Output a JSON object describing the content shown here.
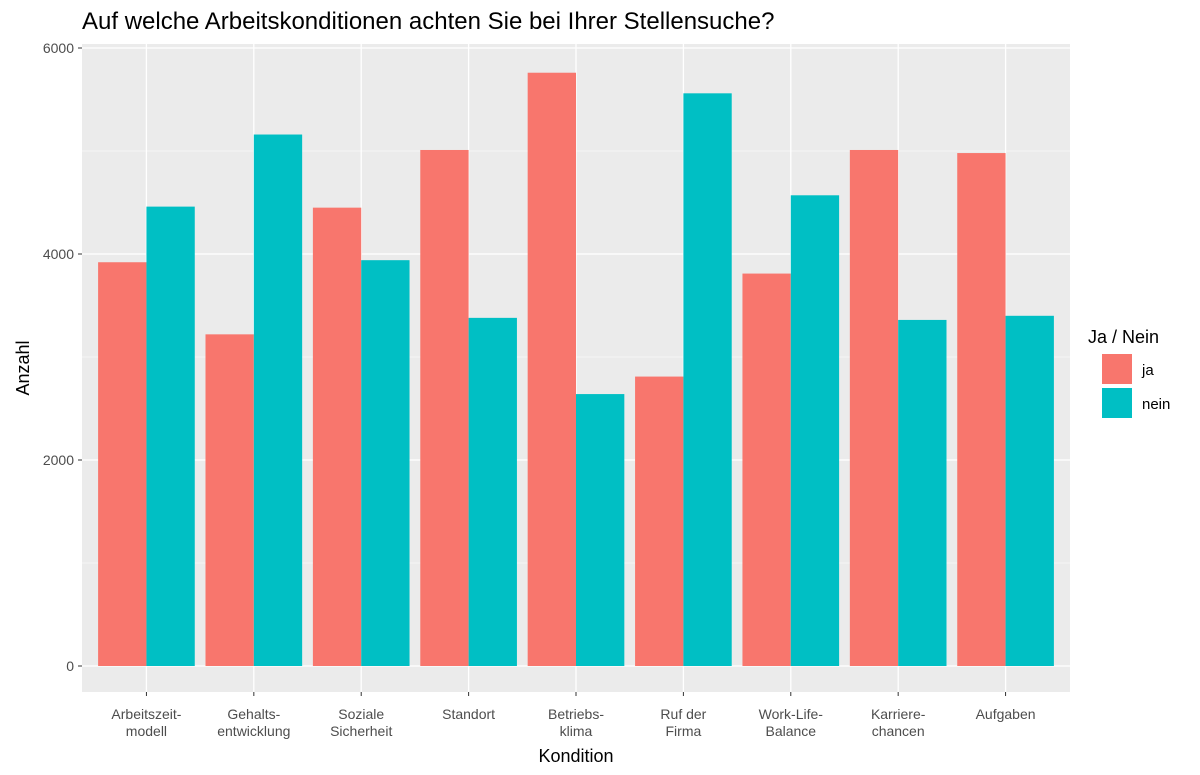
{
  "chart_data": {
    "type": "bar",
    "title": "Auf welche Arbeitskonditionen achten Sie bei Ihrer Stellensuche?",
    "xlabel": "Kondition",
    "ylabel": "Anzahl",
    "ylim": [
      -300,
      6000
    ],
    "yticks": [
      0,
      2000,
      4000,
      6000
    ],
    "grid": true,
    "legend_position": "right",
    "categories": [
      [
        "Arbeitszeit-",
        "modell"
      ],
      [
        "Gehalts-",
        "entwicklung"
      ],
      [
        "Soziale",
        "Sicherheit"
      ],
      [
        "Standort"
      ],
      [
        "Betriebs-",
        "klima"
      ],
      [
        "Ruf der",
        "Firma"
      ],
      [
        "Work-Life-",
        "Balance"
      ],
      [
        "Karriere-",
        "chancen"
      ],
      [
        "Aufgaben"
      ]
    ],
    "legend": {
      "title": "Ja / Nein"
    },
    "series": [
      {
        "name": "ja",
        "color": "#F8766D",
        "values": [
          3920,
          3220,
          4450,
          5010,
          5760,
          2810,
          3810,
          5010,
          4980
        ]
      },
      {
        "name": "nein",
        "color": "#00BFC4",
        "values": [
          4460,
          5160,
          3940,
          3380,
          2640,
          5560,
          4570,
          3360,
          3400
        ]
      }
    ]
  }
}
